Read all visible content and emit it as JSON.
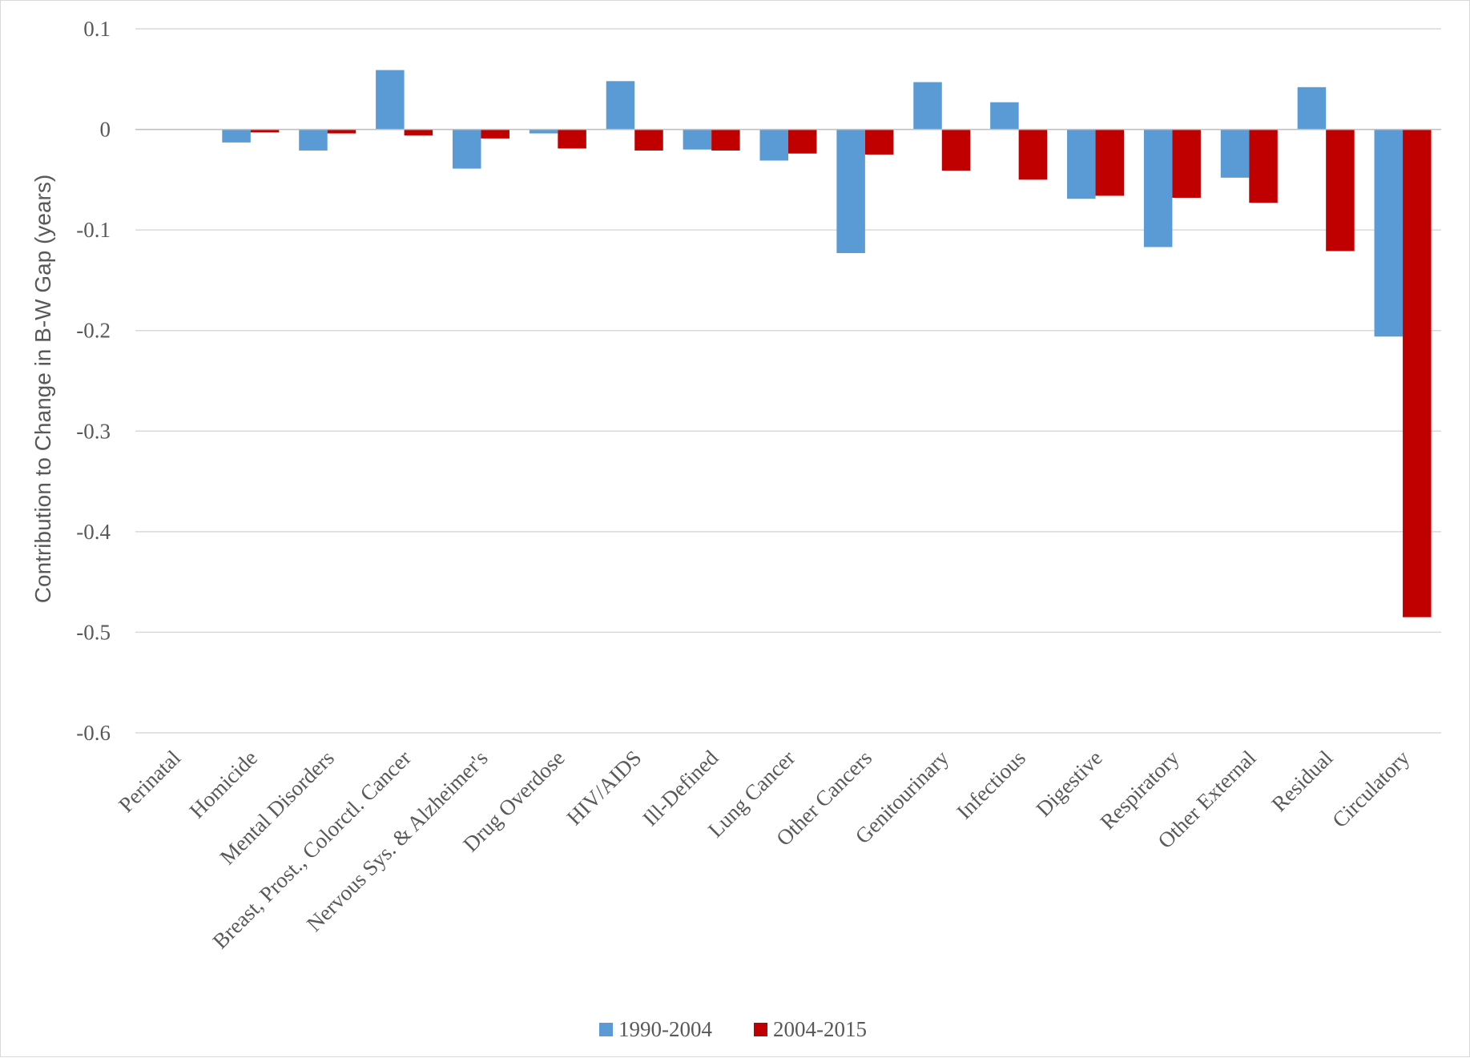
{
  "chart_data": {
    "type": "bar",
    "title": "",
    "xlabel": "",
    "ylabel": "Contribution to Change in B-W Gap (years)",
    "ylim": [
      -0.6,
      0.1
    ],
    "yticks": [
      0.1,
      0,
      -0.1,
      -0.2,
      -0.3,
      -0.4,
      -0.5,
      -0.6
    ],
    "ytick_labels": [
      "0.1",
      "0",
      "-0.1",
      "-0.2",
      "-0.3",
      "-0.4",
      "-0.5",
      "-0.6"
    ],
    "grid": true,
    "legend_position": "bottom",
    "categories": [
      "Perinatal",
      "Homicide",
      "Mental Disorders",
      "Breast, Prost., Colorctl. Cancer",
      "Nervous Sys. & Alzheimer's",
      "Drug Overdose",
      "HIV/AIDS",
      "Ill-Defined",
      "Lung Cancer",
      "Other Cancers",
      "Genitourinary",
      "Infectious",
      "Digestive",
      "Respiratory",
      "Other External",
      "Residual",
      "Circulatory"
    ],
    "series": [
      {
        "name": "1990-2004",
        "color": "#5b9bd5",
        "values": [
          0.0,
          -0.013,
          -0.021,
          0.059,
          -0.039,
          -0.004,
          0.048,
          -0.02,
          -0.031,
          -0.123,
          0.047,
          0.027,
          -0.069,
          -0.117,
          -0.048,
          0.042,
          -0.206
        ]
      },
      {
        "name": "2004-2015",
        "color": "#c00000",
        "values": [
          0.0,
          -0.003,
          -0.004,
          -0.006,
          -0.009,
          -0.019,
          -0.021,
          -0.021,
          -0.024,
          -0.025,
          -0.041,
          -0.05,
          -0.066,
          -0.068,
          -0.073,
          -0.121,
          -0.485
        ]
      }
    ]
  }
}
